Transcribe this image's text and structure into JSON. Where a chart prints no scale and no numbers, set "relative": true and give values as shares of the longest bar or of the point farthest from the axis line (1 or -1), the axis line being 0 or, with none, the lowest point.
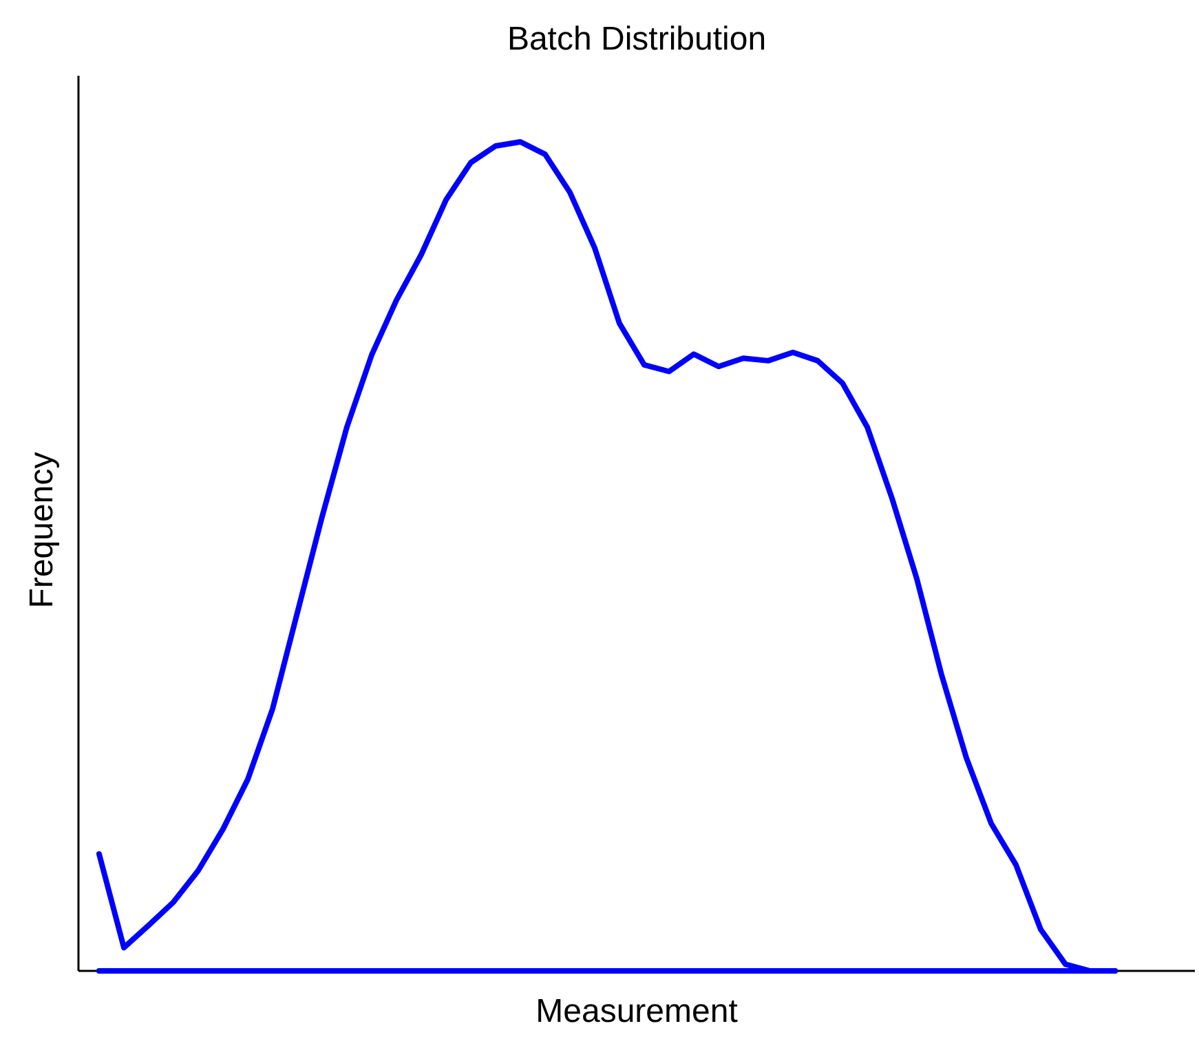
{
  "chart_data": {
    "type": "line",
    "title": "Batch Distribution",
    "xlabel": "Measurement",
    "ylabel": "Frequency",
    "relative": true,
    "categories": [
      null,
      null,
      null,
      null,
      null,
      null,
      null,
      null,
      null,
      null,
      null,
      null,
      null,
      null,
      null,
      null,
      null,
      null,
      null,
      null,
      null,
      null,
      null,
      null,
      null,
      null,
      null,
      null,
      null,
      null,
      null,
      null,
      null,
      null,
      null,
      null,
      null,
      null,
      null,
      null,
      null,
      null
    ],
    "series": [
      {
        "color": "#0000ff",
        "values": [
          0.141,
          0.028,
          0.055,
          0.083,
          0.121,
          0.171,
          0.231,
          0.316,
          0.432,
          0.548,
          0.656,
          0.743,
          0.809,
          0.864,
          0.93,
          0.975,
          0.995,
          1,
          0.985,
          0.939,
          0.872,
          0.781,
          0.731,
          0.723,
          0.744,
          0.729,
          0.739,
          0.736,
          0.746,
          0.736,
          0.709,
          0.656,
          0.57,
          0.473,
          0.357,
          0.257,
          0.178,
          0.128,
          0.05,
          0.008,
          0,
          0
        ]
      },
      {
        "color": "#0000ff",
        "values": [
          0,
          0,
          0,
          0,
          0,
          0,
          0,
          0,
          0,
          0,
          0,
          0,
          0,
          0,
          0,
          0,
          0,
          0,
          0,
          0,
          0,
          0,
          0,
          0,
          0,
          0,
          0,
          0,
          0,
          0,
          0,
          0,
          0,
          0,
          0,
          0,
          0,
          0,
          0,
          0,
          0,
          0
        ]
      }
    ],
    "marker": "none",
    "line_style": "solid"
  }
}
